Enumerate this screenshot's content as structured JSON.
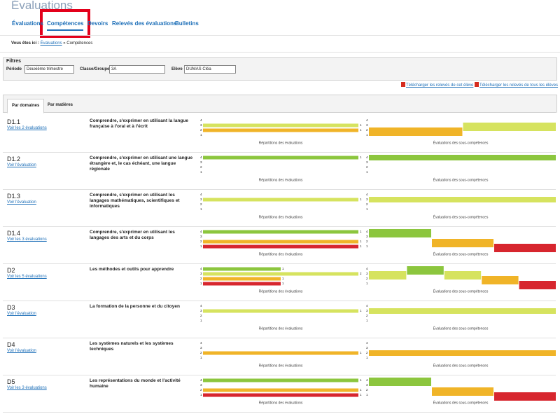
{
  "header": {
    "title": "Évaluations",
    "tabs": [
      "Évaluations",
      "Compétences",
      "Devoirs",
      "Relevés des évaluations",
      "Bulletins"
    ],
    "active_tab": 1
  },
  "breadcrumb": {
    "label": "Vous êtes ici :",
    "items": [
      "Évaluations",
      "Compétences"
    ],
    "separator": "»"
  },
  "filters": {
    "title": "Filtres",
    "fields": [
      {
        "label": "Période",
        "value": "Deuxième trimestre"
      },
      {
        "label": "Classe/Groupe",
        "value": "3A"
      },
      {
        "label": "Elève",
        "value": "DUMAS Cléa"
      }
    ]
  },
  "downloads": [
    "Télécharger les relevés de cet élève",
    "Télécharger les relevés de tous les élèves"
  ],
  "subtabs": [
    "Par domaines",
    "Par matières"
  ],
  "active_subtab": 0,
  "levels": [
    4,
    3,
    2,
    1
  ],
  "level_colors": [
    "#8cc63e",
    "#d6e35f",
    "#f0b428",
    "#d7262e"
  ],
  "captions": {
    "distribution": "Répartitions des évaluations",
    "subcompetences": "Évaluations des sous-compétences"
  },
  "domains": [
    {
      "code": "D1.1",
      "link": "Voir les 2 évaluations",
      "description": "Comprendre, s'exprimer en utilisant la langue française à l'oral et à l'écrit",
      "counts": [
        0,
        1,
        1,
        0
      ],
      "subcompetences": [
        2,
        3
      ]
    },
    {
      "code": "D1.2",
      "link": "Voir l'évaluation",
      "description": "Comprendre, s'exprimer en utilisant une langue étrangère et, le cas échéant, une langue régionale",
      "counts": [
        1,
        0,
        0,
        0
      ],
      "subcompetences": [
        4
      ]
    },
    {
      "code": "D1.3",
      "link": "Voir l'évaluation",
      "description": "Comprendre, s'exprimer en utilisant les langages mathématiques, scientifiques et informatiques",
      "counts": [
        0,
        1,
        0,
        0
      ],
      "subcompetences": [
        3
      ]
    },
    {
      "code": "D1.4",
      "link": "Voir les 3 évaluations",
      "description": "Comprendre, s'exprimer en utilisant les langages des arts et du corps",
      "counts": [
        1,
        0,
        1,
        1
      ],
      "subcompetences": [
        4,
        2,
        1
      ]
    },
    {
      "code": "D2",
      "link": "Voir les 5 évaluations",
      "description": "Les méthodes et outils pour apprendre",
      "counts": [
        1,
        2,
        1,
        1
      ],
      "subcompetences": [
        3,
        4,
        3,
        2,
        1
      ]
    },
    {
      "code": "D3",
      "link": "Voir l'évaluation",
      "description": "La formation de la personne et du citoyen",
      "counts": [
        0,
        1,
        0,
        0
      ],
      "subcompetences": [
        3
      ]
    },
    {
      "code": "D4",
      "link": "Voir l'évaluation",
      "description": "Les systèmes naturels et les systèmes techniques",
      "counts": [
        0,
        0,
        1,
        0
      ],
      "subcompetences": [
        2
      ]
    },
    {
      "code": "D5",
      "link": "Voir les 3 évaluations",
      "description": "Les représentations du monde et l'activité humaine",
      "counts": [
        1,
        0,
        1,
        1
      ],
      "subcompetences": [
        4,
        2,
        1
      ]
    }
  ]
}
